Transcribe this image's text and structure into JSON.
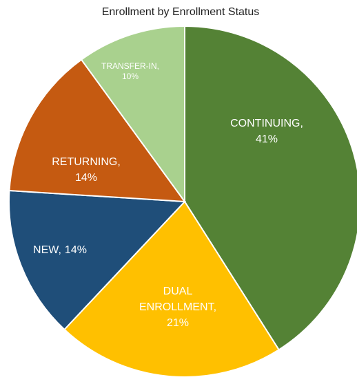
{
  "chart_data": {
    "type": "pie",
    "title": "Enrollment by Enrollment Status",
    "categories": [
      "CONTINUING,",
      "DUAL ENROLLMENT,",
      "NEW,",
      "RETURNING,",
      "TRANSFER-IN,"
    ],
    "values": [
      41,
      21,
      14,
      14,
      10
    ],
    "value_labels": [
      "41%",
      "21%",
      "14%",
      "14%",
      "10%"
    ],
    "colors": [
      "#548235",
      "#ffc000",
      "#1f4e79",
      "#c55a11",
      "#a9d18e"
    ]
  }
}
